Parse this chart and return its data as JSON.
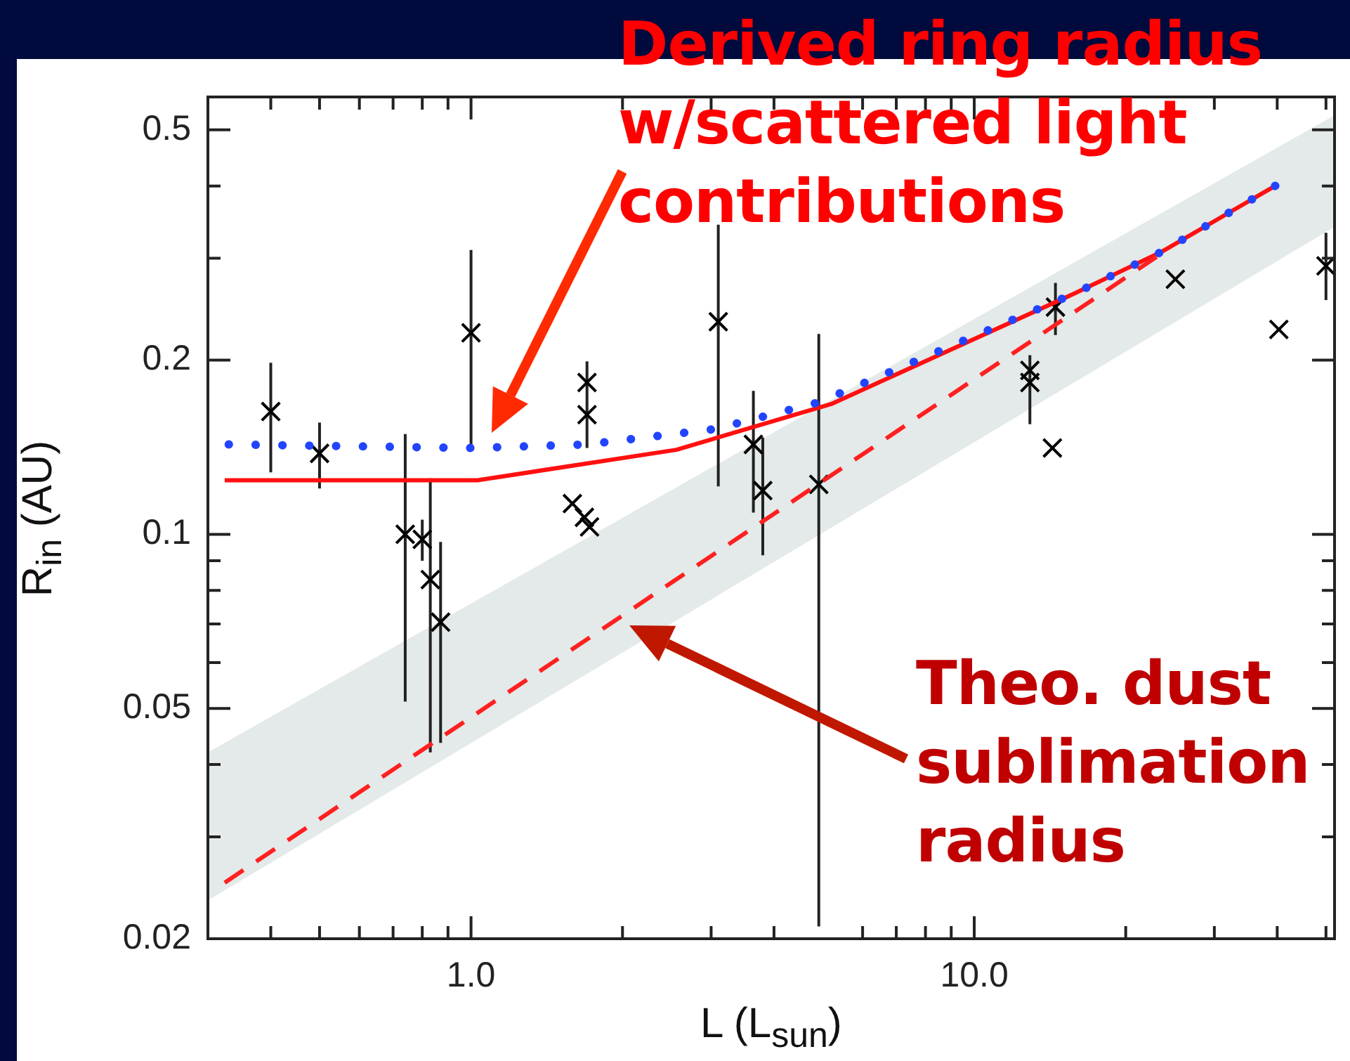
{
  "chart_data": {
    "type": "scatter",
    "xlabel": "L (L$_{sun}$)",
    "ylabel": "R$_{in}$ (AU)",
    "log": "xy",
    "grid": false,
    "legend": false,
    "xlim": [
      0.3,
      52
    ],
    "ylim": [
      0.02,
      0.57
    ],
    "xticks": [
      {
        "value": 0.4,
        "label": null
      },
      {
        "value": 0.5,
        "label": null
      },
      {
        "value": 0.6,
        "label": null
      },
      {
        "value": 0.7,
        "label": null
      },
      {
        "value": 0.8,
        "label": null
      },
      {
        "value": 0.9,
        "label": null
      },
      {
        "value": 1,
        "label": "1.0"
      },
      {
        "value": 2,
        "label": null
      },
      {
        "value": 3,
        "label": null
      },
      {
        "value": 4,
        "label": null
      },
      {
        "value": 6,
        "label": null
      },
      {
        "value": 7,
        "label": null
      },
      {
        "value": 8,
        "label": null
      },
      {
        "value": 9,
        "label": null
      },
      {
        "value": 10,
        "label": "10.0"
      },
      {
        "value": 20,
        "label": null
      },
      {
        "value": 30,
        "label": null
      },
      {
        "value": 40,
        "label": null
      },
      {
        "value": 50,
        "label": null
      }
    ],
    "yticks": [
      0.02,
      {
        "value": 0.03,
        "label": null
      },
      {
        "value": 0.04,
        "label": null
      },
      0.05,
      {
        "value": 0.06,
        "label": null
      },
      {
        "value": 0.07,
        "label": null
      },
      {
        "value": 0.08,
        "label": null
      },
      {
        "value": 0.09,
        "label": null
      },
      0.1,
      0.2,
      {
        "value": 0.3,
        "label": null
      },
      {
        "value": 0.4,
        "label": null
      },
      0.5
    ],
    "series": [
      {
        "type": "line",
        "color": "#e4e9e9",
        "x": [
          0.3,
          52
        ],
        "values": [
          null,
          null
        ],
        "lower": [
          0.0233,
          0.34
        ],
        "upper": [
          0.042,
          0.53
        ],
        "marker": "none"
      },
      {
        "type": "line",
        "color": "#ff2020",
        "line_style": "dashed",
        "marker": "none",
        "x": [
          0.324,
          23.6
        ],
        "values": [
          0.025,
          0.306
        ]
      },
      {
        "type": "line",
        "color": "#2244ff",
        "line_style": "dotted",
        "marker": "none",
        "x": [
          0.33,
          1.0,
          1.7,
          3.05,
          4.9,
          15.7,
          23.6,
          40
        ],
        "values": [
          0.143,
          0.141,
          0.143,
          0.152,
          0.169,
          0.26,
          0.308,
          0.402
        ]
      },
      {
        "type": "line",
        "color": "#ff1010",
        "line_style": "solid",
        "marker": "none",
        "x": [
          0.324,
          1.03,
          2.56,
          5.2,
          15.7,
          23.6,
          40
        ],
        "values": [
          0.124,
          0.124,
          0.14,
          0.168,
          0.26,
          0.308,
          0.402
        ]
      },
      {
        "type": "scatter",
        "color": "#000000",
        "marker": "cross",
        "x": [
          0.4,
          0.5,
          1.0,
          3.1,
          1.7,
          1.7,
          3.64,
          3.8,
          0.74,
          0.8,
          0.83,
          0.87,
          1.59,
          1.68,
          1.72,
          4.91,
          14.5,
          12.9,
          12.9,
          14.3,
          25.1,
          40.3,
          50
        ],
        "values": [
          0.163,
          0.138,
          0.223,
          0.233,
          0.183,
          0.161,
          0.143,
          0.119,
          0.1,
          0.098,
          0.0835,
          0.0705,
          0.113,
          0.107,
          0.103,
          0.122,
          0.247,
          0.192,
          0.183,
          0.141,
          0.276,
          0.226,
          0.291
        ],
        "errors": [
          [
            0.128,
            0.198
          ],
          [
            0.12,
            0.156
          ],
          [
            0.141,
            0.31
          ],
          [
            0.121,
            0.343
          ],
          [
            0.141,
            0.199
          ],
          null,
          [
            0.109,
            0.177
          ],
          [
            0.092,
            0.147
          ],
          [
            0.0514,
            0.149
          ],
          [
            0.09,
            0.106
          ],
          [
            0.042,
            0.125
          ],
          [
            0.0436,
            0.097
          ],
          null,
          null,
          null,
          [
            0.021,
            0.222
          ],
          [
            0.221,
            0.272
          ],
          [
            0.155,
            0.204
          ],
          null,
          null,
          null,
          null,
          [
            0.254,
            0.332
          ]
        ]
      }
    ],
    "annotations": [
      "Derived ring radius w/scattered light contributions",
      "Theo. dust sublimation radius"
    ]
  }
}
